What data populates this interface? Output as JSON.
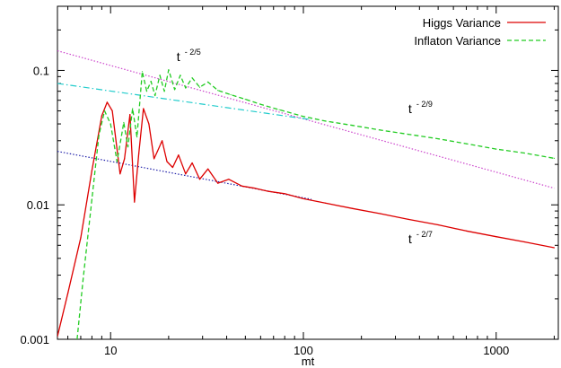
{
  "chart_data": {
    "type": "line",
    "title": "",
    "xlabel": "mt",
    "ylabel": "",
    "xscale": "log",
    "yscale": "log",
    "xlim": [
      5.3,
      2100
    ],
    "ylim": [
      0.001,
      0.3
    ],
    "grid": false,
    "legend_position": "top-right",
    "x_ticks": [
      {
        "value": 10,
        "label": "10"
      },
      {
        "value": 100,
        "label": "100"
      },
      {
        "value": 1000,
        "label": "1000"
      }
    ],
    "y_ticks": [
      {
        "value": 0.001,
        "label": "0.001"
      },
      {
        "value": 0.01,
        "label": "0.01"
      },
      {
        "value": 0.1,
        "label": "0.1"
      }
    ],
    "series": [
      {
        "name": "Higgs Variance",
        "color": "#dd0000",
        "style": "solid",
        "x": [
          5.3,
          6,
          7,
          8,
          9,
          9.6,
          10.2,
          11.2,
          11.8,
          12.6,
          13.3,
          14,
          14.8,
          15.8,
          16.8,
          17.5,
          18.5,
          19.6,
          21,
          22.5,
          24.5,
          26.5,
          29,
          32,
          36,
          41,
          48,
          56,
          66,
          80,
          100,
          130,
          180,
          250,
          350,
          500,
          700,
          1000,
          1400,
          2000
        ],
        "y": [
          0.00105,
          0.0022,
          0.0057,
          0.018,
          0.046,
          0.058,
          0.05,
          0.017,
          0.022,
          0.047,
          0.0105,
          0.024,
          0.052,
          0.04,
          0.022,
          0.025,
          0.03,
          0.021,
          0.019,
          0.0235,
          0.017,
          0.0205,
          0.0155,
          0.0185,
          0.0145,
          0.0155,
          0.0138,
          0.0133,
          0.0126,
          0.0121,
          0.0111,
          0.0103,
          0.0094,
          0.0086,
          0.0078,
          0.0071,
          0.0064,
          0.0058,
          0.0053,
          0.0048
        ]
      },
      {
        "name": "Inflaton Variance",
        "color": "#22cc22",
        "style": "dashed",
        "x": [
          6.7,
          7.2,
          8,
          8.7,
          9.3,
          10,
          10.8,
          11.7,
          12.3,
          13,
          13.7,
          14.6,
          15.4,
          16.2,
          17,
          18,
          19,
          20,
          21.5,
          23,
          24.5,
          26.5,
          29,
          32,
          36,
          42,
          50,
          60,
          75,
          100,
          130,
          180,
          250,
          350,
          500,
          700,
          1000,
          1400,
          2000
        ],
        "y": [
          0.001,
          0.0028,
          0.011,
          0.033,
          0.05,
          0.04,
          0.021,
          0.041,
          0.027,
          0.052,
          0.032,
          0.098,
          0.07,
          0.083,
          0.065,
          0.092,
          0.07,
          0.101,
          0.072,
          0.092,
          0.074,
          0.088,
          0.075,
          0.082,
          0.071,
          0.066,
          0.061,
          0.056,
          0.051,
          0.0455,
          0.042,
          0.039,
          0.036,
          0.0335,
          0.031,
          0.0285,
          0.026,
          0.0243,
          0.0222
        ]
      }
    ],
    "reference_lines": [
      {
        "x": [
          5.3,
          2000
        ],
        "y": [
          0.14,
          0.0133
        ],
        "color": "#cc44cc",
        "style": "dotted"
      },
      {
        "x": [
          5.3,
          110
        ],
        "y": [
          0.08,
          0.043
        ],
        "color": "#22cccc",
        "style": "dashdot"
      },
      {
        "x": [
          5.3,
          110
        ],
        "y": [
          0.025,
          0.011
        ],
        "color": "#2222aa",
        "style": "dotted"
      }
    ],
    "annotations": [
      {
        "base": "t",
        "exponent": "- 2/5",
        "x": 22,
        "y": 0.117
      },
      {
        "base": "t",
        "exponent": "- 2/9",
        "x": 350,
        "y": 0.048
      },
      {
        "base": "t",
        "exponent": "- 2/7",
        "x": 350,
        "y": 0.0052
      }
    ]
  }
}
